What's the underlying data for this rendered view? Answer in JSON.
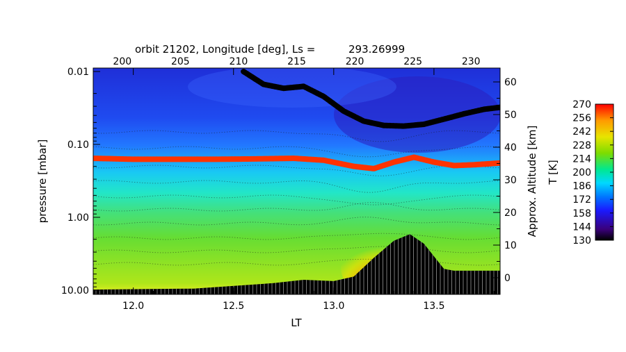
{
  "chart_data": {
    "type": "heatmap",
    "title": "orbit 21202, Longitude [deg], Ls =          293.26999",
    "top_axis": {
      "label": "Longitude [deg]",
      "ticks": [
        "200",
        "205",
        "210",
        "215",
        "220",
        "225",
        "230"
      ],
      "values": [
        200,
        205,
        210,
        215,
        220,
        225,
        230
      ],
      "range": [
        197.5,
        232.5
      ]
    },
    "x_axis": {
      "label": "LT",
      "ticks": [
        "12.0",
        "12.5",
        "13.0",
        "13.5"
      ],
      "values": [
        12.0,
        12.5,
        13.0,
        13.5
      ],
      "range": [
        11.8,
        13.83
      ]
    },
    "y_axis": {
      "label": "pressure [mbar]",
      "scale": "log",
      "ticks": [
        "0.01",
        "0.10",
        "1.00",
        "10.00"
      ],
      "values": [
        0.01,
        0.1,
        1.0,
        10.0
      ],
      "range": [
        0.01,
        10.0
      ]
    },
    "right_axis": {
      "label": "Approx. Altitude [km]",
      "ticks": [
        "0",
        "10",
        "20",
        "30",
        "40",
        "50",
        "60"
      ],
      "values": [
        0,
        10,
        20,
        30,
        40,
        50,
        60
      ]
    },
    "colorbar": {
      "label": "T [K]",
      "ticks": [
        "270",
        "256",
        "242",
        "228",
        "214",
        "200",
        "186",
        "172",
        "158",
        "144",
        "130"
      ],
      "range": [
        130,
        270
      ],
      "colormap": [
        "#000000",
        "#3a007a",
        "#1a1aff",
        "#0077ff",
        "#00d8ff",
        "#00e890",
        "#7ddc00",
        "#e8e400",
        "#ff9a00",
        "#ff0000"
      ]
    },
    "series": [
      {
        "color": "#000000",
        "x": [
          12.55,
          12.65,
          12.75,
          12.85,
          12.95,
          13.05,
          13.15,
          13.25,
          13.35,
          13.45,
          13.55,
          13.65,
          13.75,
          13.83
        ],
        "pressure": [
          0.01,
          0.015,
          0.017,
          0.016,
          0.022,
          0.035,
          0.048,
          0.055,
          0.056,
          0.053,
          0.045,
          0.038,
          0.033,
          0.031
        ]
      },
      {
        "color": "#ff3300",
        "x": [
          11.8,
          12.0,
          12.2,
          12.4,
          12.6,
          12.8,
          12.95,
          13.1,
          13.2,
          13.3,
          13.4,
          13.5,
          13.6,
          13.7,
          13.83
        ],
        "pressure": [
          0.155,
          0.16,
          0.16,
          0.16,
          0.158,
          0.155,
          0.165,
          0.2,
          0.215,
          0.175,
          0.15,
          0.175,
          0.195,
          0.19,
          0.18
        ]
      }
    ],
    "surface": {
      "x": [
        11.8,
        12.3,
        12.7,
        12.85,
        13.0,
        13.1,
        13.2,
        13.3,
        13.38,
        13.45,
        13.55,
        13.6,
        13.83
      ],
      "pressure": [
        9.8,
        9.5,
        8.0,
        7.2,
        7.5,
        6.5,
        3.6,
        2.1,
        1.7,
        2.3,
        5.1,
        5.4,
        5.4
      ]
    }
  }
}
